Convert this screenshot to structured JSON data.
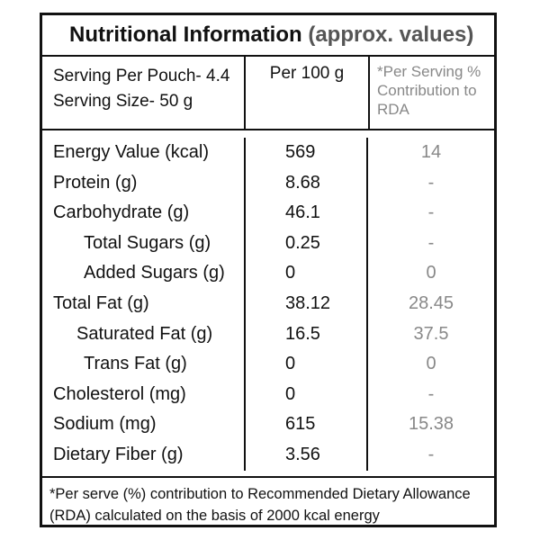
{
  "header": {
    "title": "Nutritional Information",
    "title_note": "(approx. values)"
  },
  "table": {
    "head": {
      "serving_per_pouch": "Serving Per Pouch- 4.4",
      "serving_size": "Serving Size- 50 g",
      "per_100g": "Per 100 g",
      "rda": "*Per Serving % Contribution to RDA"
    },
    "rows": [
      [
        "Energy Value (kcal)",
        569,
        14
      ],
      [
        "Protein (g)",
        8.68,
        "-"
      ],
      [
        "Carbohydrate (g)",
        46.1,
        "-"
      ],
      [
        "Total Sugars (g)",
        0.25,
        "-"
      ],
      [
        "Added Sugars (g)",
        0,
        0
      ],
      [
        "Total Fat (g)",
        38.12,
        28.45
      ],
      [
        "Saturated Fat (g)",
        16.5,
        37.5
      ],
      [
        "Trans Fat (g)",
        0,
        0
      ],
      [
        "Cholesterol (mg)",
        0,
        "-"
      ],
      [
        "Sodium (mg)",
        615,
        15.38
      ],
      [
        "Dietary Fiber (g)",
        3.56,
        "-"
      ]
    ]
  },
  "footer": {
    "note": "*Per serve (%) contribution to Recommended Dietary Allowance (RDA) calculated on the basis of 2000 kcal energy"
  }
}
